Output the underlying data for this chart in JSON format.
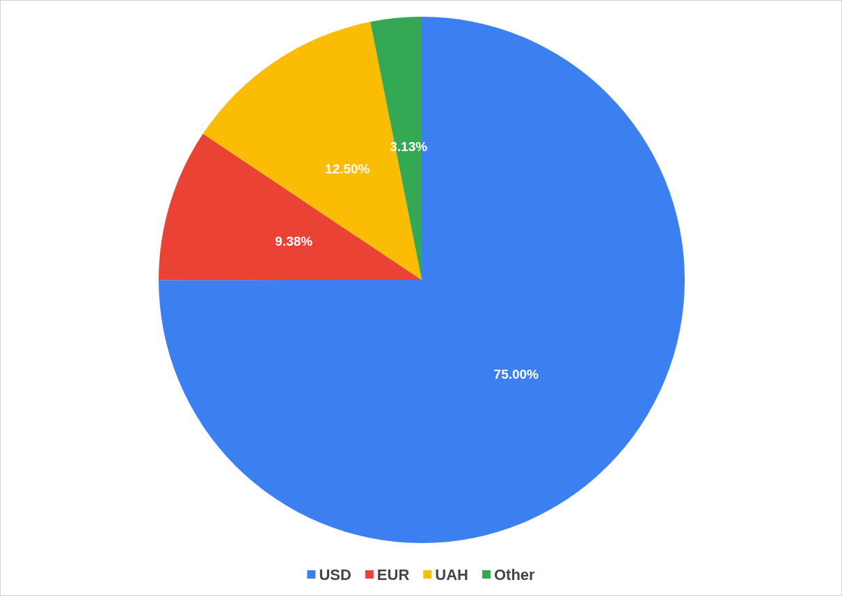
{
  "chart_data": {
    "type": "pie",
    "categories": [
      "USD",
      "EUR",
      "UAH",
      "Other"
    ],
    "values": [
      75,
      9.38,
      12.5,
      3.13
    ],
    "colors": [
      "#3b7ff0",
      "#ea4335",
      "#fbbc04",
      "#34a853"
    ],
    "value_labels": [
      "75.00%",
      "9.38%",
      "12.50%",
      "3.13%"
    ],
    "legend": "bottom"
  }
}
